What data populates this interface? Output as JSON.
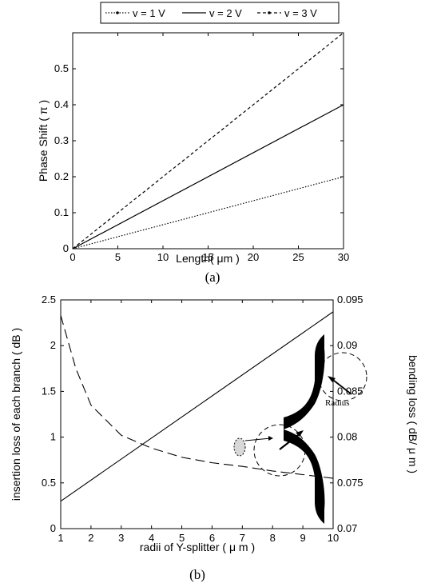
{
  "chart_data": [
    {
      "type": "line",
      "caption": "(a)",
      "xlabel": "Length( μm )",
      "ylabel": "Phase Shift ( π )",
      "xlim": [
        0,
        30
      ],
      "ylim": [
        0,
        0.6
      ],
      "xticks": [
        "0",
        "5",
        "10",
        "15",
        "20",
        "25",
        "30"
      ],
      "yticks": [
        "0",
        "0.1",
        "0.2",
        "0.3",
        "0.4",
        "0.5"
      ],
      "legend_position": "top-center",
      "x": [
        0,
        30
      ],
      "series": [
        {
          "name": "v = 1 V",
          "style": "dotted",
          "values": [
            0,
            0.2
          ]
        },
        {
          "name": "v = 2 V",
          "style": "solid",
          "values": [
            0,
            0.4
          ]
        },
        {
          "name": "v = 3 V",
          "style": "dashed",
          "values": [
            0,
            0.6
          ]
        }
      ],
      "grid": false
    },
    {
      "type": "line",
      "caption": "(b)",
      "xlabel": "radii of Y-splitter ( μ m )",
      "ylabel": "insertion loss of each branch ( dB )",
      "ylabel_right": "bending loss ( dB/  μ m )",
      "xlim": [
        1,
        10
      ],
      "ylim": [
        0,
        2.5
      ],
      "ylim_right": [
        0.07,
        0.095
      ],
      "xticks": [
        "1",
        "2",
        "3",
        "4",
        "5",
        "6",
        "7",
        "8",
        "9",
        "10"
      ],
      "yticks": [
        "0",
        "0.5",
        "1",
        "1.5",
        "2",
        "2.5"
      ],
      "yticks_right": [
        "0.07",
        "0.075",
        "0.08",
        "0.085",
        "0.09",
        "0.095"
      ],
      "series": [
        {
          "axis": "left",
          "style": "solid",
          "x": [
            1,
            10
          ],
          "values": [
            0.3,
            2.37
          ]
        },
        {
          "axis": "right",
          "style": "dashed",
          "x": [
            1,
            1.5,
            2,
            3,
            4,
            5,
            6,
            7,
            8,
            9,
            10
          ],
          "values": [
            0.0933,
            0.0875,
            0.0835,
            0.0802,
            0.0788,
            0.0778,
            0.0772,
            0.0768,
            0.0763,
            0.0759,
            0.0755
          ]
        }
      ],
      "inset": {
        "label": "Radius",
        "description": "Y-splitter with circular bend radius"
      },
      "grid": false
    }
  ]
}
